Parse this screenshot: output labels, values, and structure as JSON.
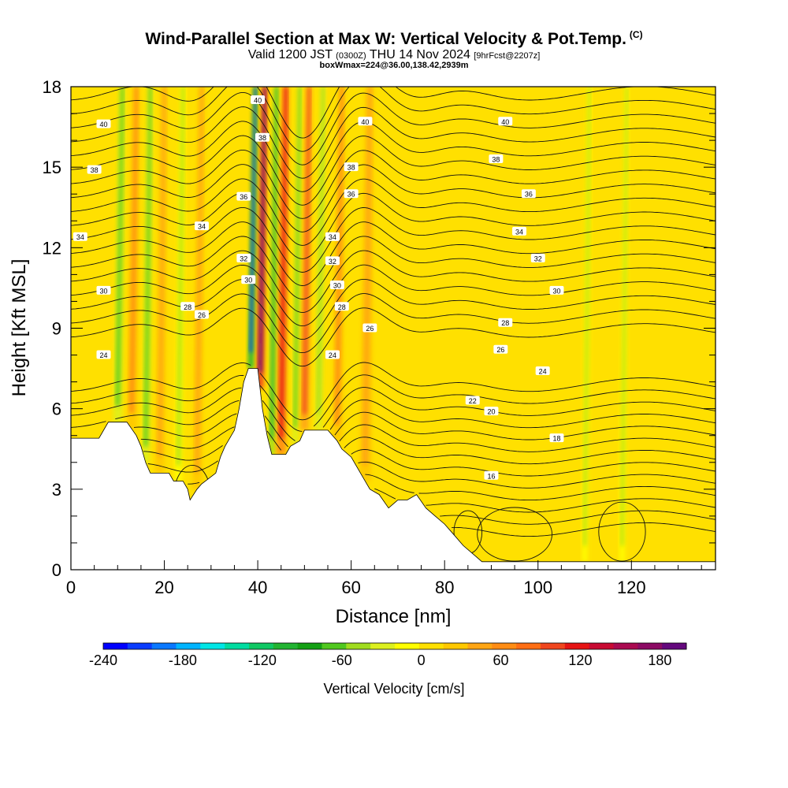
{
  "chart_data": {
    "type": "heatmap",
    "title": "Wind-Parallel Section at Max W: Vertical Velocity & Pot.Temp.",
    "title_mark": "(C)",
    "subtitle": {
      "valid": "Valid 1200 JST",
      "utc": "(0300Z)",
      "date": "THU 14 Nov 2024",
      "forecast": "[9hrFcst@2207z]"
    },
    "info_line": "boxWmax=224@36.00,138.42,2939m",
    "xlabel": "Distance [nm]",
    "ylabel": "Height [Kft MSL]",
    "xlim": [
      0,
      138
    ],
    "ylim": [
      0,
      18
    ],
    "x_ticks": [
      "0",
      "20",
      "40",
      "60",
      "80",
      "100",
      "120"
    ],
    "y_ticks": [
      "0",
      "3",
      "6",
      "9",
      "12",
      "15",
      "18"
    ],
    "colorbar": {
      "label": "Vertical Velocity [cm/s]",
      "range": [
        -240,
        200
      ],
      "tick_labels": [
        "-240",
        "-180",
        "-120",
        "-60",
        "0",
        "60",
        "120",
        "180"
      ],
      "colors": [
        "#0000ff",
        "#0a3cff",
        "#0a78ff",
        "#00b4ff",
        "#00e6e6",
        "#00dca0",
        "#10c864",
        "#22b432",
        "#14a014",
        "#50c81e",
        "#a0dc1e",
        "#dcf01e",
        "#ffff00",
        "#ffe000",
        "#ffc800",
        "#ffa514",
        "#ff8c14",
        "#ff6e14",
        "#f0461e",
        "#e61414",
        "#c80a32",
        "#aa0a50",
        "#8c0a64",
        "#64087d"
      ]
    },
    "terrain": [
      [
        0,
        4.9
      ],
      [
        6,
        4.9
      ],
      [
        8,
        5.5
      ],
      [
        12,
        5.5
      ],
      [
        14,
        5.0
      ],
      [
        15,
        4.6
      ],
      [
        16,
        4.0
      ],
      [
        17,
        3.6
      ],
      [
        21,
        3.6
      ],
      [
        22,
        3.3
      ],
      [
        24,
        3.3
      ],
      [
        25,
        3.0
      ],
      [
        25.5,
        2.6
      ],
      [
        27,
        3.0
      ],
      [
        28,
        3.2
      ],
      [
        31,
        3.6
      ],
      [
        32,
        4.2
      ],
      [
        33,
        4.6
      ],
      [
        35,
        5.2
      ],
      [
        36,
        6.0
      ],
      [
        37,
        7.0
      ],
      [
        38,
        7.5
      ],
      [
        40,
        7.5
      ],
      [
        41,
        6.0
      ],
      [
        42,
        5.0
      ],
      [
        43,
        4.3
      ],
      [
        46,
        4.3
      ],
      [
        47,
        4.6
      ],
      [
        49,
        4.8
      ],
      [
        50,
        5.2
      ],
      [
        55,
        5.2
      ],
      [
        57,
        4.8
      ],
      [
        58,
        4.5
      ],
      [
        60,
        4.2
      ],
      [
        62,
        3.6
      ],
      [
        64,
        3.0
      ],
      [
        66,
        2.8
      ],
      [
        68,
        2.3
      ],
      [
        70,
        2.6
      ],
      [
        72,
        2.6
      ],
      [
        74,
        2.8
      ],
      [
        76,
        2.3
      ],
      [
        78,
        2.0
      ],
      [
        80,
        1.7
      ],
      [
        82,
        1.3
      ],
      [
        84,
        0.9
      ],
      [
        86,
        0.6
      ],
      [
        88,
        0.3
      ],
      [
        90,
        0.3
      ],
      [
        138,
        0.3
      ]
    ],
    "updrafts": [
      {
        "x": 13,
        "w": 2.2,
        "value": 60
      },
      {
        "x": 19,
        "w": 2.0,
        "value": 45
      },
      {
        "x": 27,
        "w": 2.0,
        "value": 45
      },
      {
        "x": 40.5,
        "w": 1.6,
        "value": 200
      },
      {
        "x": 45,
        "w": 2.0,
        "value": 120
      },
      {
        "x": 50,
        "w": 1.8,
        "value": 90
      },
      {
        "x": 57,
        "w": 2.2,
        "value": 60
      },
      {
        "x": 63,
        "w": 2.6,
        "value": 40
      }
    ],
    "downdrafts": [
      {
        "x": 10,
        "w": 1.8,
        "value": -60
      },
      {
        "x": 16,
        "w": 1.6,
        "value": -60
      },
      {
        "x": 23,
        "w": 1.6,
        "value": -40
      },
      {
        "x": 38.5,
        "w": 1.3,
        "value": -220
      },
      {
        "x": 43,
        "w": 1.4,
        "value": -100
      },
      {
        "x": 48,
        "w": 1.3,
        "value": -60
      },
      {
        "x": 53,
        "w": 1.5,
        "value": -50
      },
      {
        "x": 110,
        "w": 1.2,
        "value": -40
      },
      {
        "x": 118,
        "w": 1.2,
        "value": -40
      }
    ],
    "isentrope_levels": [
      12,
      13,
      14,
      15,
      16,
      17,
      18,
      19,
      20,
      21,
      22,
      23,
      24,
      25,
      26,
      27,
      28,
      29,
      30,
      31,
      32,
      33,
      34,
      35,
      36,
      37,
      38,
      39,
      40,
      41,
      42
    ],
    "contour_labels": [
      {
        "x": 7,
        "y": 8.0,
        "text": "24"
      },
      {
        "x": 7,
        "y": 10.4,
        "text": "30"
      },
      {
        "x": 2,
        "y": 12.4,
        "text": "34"
      },
      {
        "x": 5,
        "y": 14.9,
        "text": "38"
      },
      {
        "x": 7,
        "y": 16.6,
        "text": "40"
      },
      {
        "x": 28,
        "y": 9.5,
        "text": "26"
      },
      {
        "x": 28,
        "y": 12.8,
        "text": "34"
      },
      {
        "x": 25,
        "y": 9.8,
        "text": "28"
      },
      {
        "x": 37,
        "y": 13.9,
        "text": "36"
      },
      {
        "x": 37,
        "y": 11.6,
        "text": "32"
      },
      {
        "x": 38,
        "y": 10.8,
        "text": "30"
      },
      {
        "x": 40,
        "y": 17.5,
        "text": "40"
      },
      {
        "x": 41,
        "y": 16.1,
        "text": "38"
      },
      {
        "x": 56,
        "y": 12.4,
        "text": "34"
      },
      {
        "x": 56,
        "y": 11.5,
        "text": "32"
      },
      {
        "x": 57,
        "y": 10.6,
        "text": "30"
      },
      {
        "x": 58,
        "y": 9.8,
        "text": "28"
      },
      {
        "x": 56,
        "y": 8.0,
        "text": "24"
      },
      {
        "x": 64,
        "y": 9.0,
        "text": "26"
      },
      {
        "x": 60,
        "y": 15.0,
        "text": "38"
      },
      {
        "x": 60,
        "y": 14.0,
        "text": "36"
      },
      {
        "x": 63,
        "y": 16.7,
        "text": "40"
      },
      {
        "x": 93,
        "y": 16.7,
        "text": "40"
      },
      {
        "x": 91,
        "y": 15.3,
        "text": "38"
      },
      {
        "x": 98,
        "y": 14.0,
        "text": "36"
      },
      {
        "x": 96,
        "y": 12.6,
        "text": "34"
      },
      {
        "x": 100,
        "y": 11.6,
        "text": "32"
      },
      {
        "x": 104,
        "y": 10.4,
        "text": "30"
      },
      {
        "x": 93,
        "y": 9.2,
        "text": "28"
      },
      {
        "x": 92,
        "y": 8.2,
        "text": "26"
      },
      {
        "x": 101,
        "y": 7.4,
        "text": "24"
      },
      {
        "x": 86,
        "y": 6.3,
        "text": "22"
      },
      {
        "x": 90,
        "y": 5.9,
        "text": "20"
      },
      {
        "x": 104,
        "y": 4.9,
        "text": "18"
      },
      {
        "x": 90,
        "y": 3.5,
        "text": "16"
      }
    ]
  }
}
